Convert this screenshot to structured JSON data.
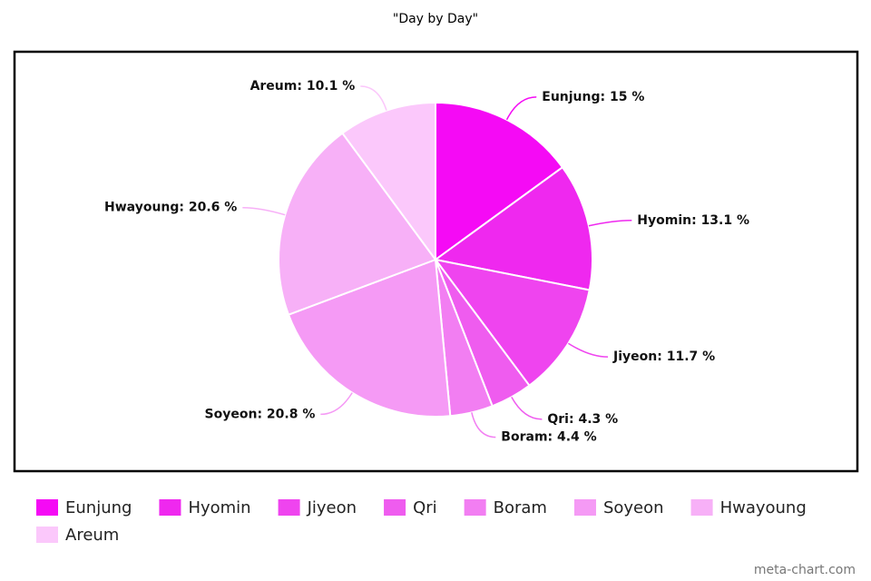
{
  "chart_data": {
    "type": "pie",
    "title": "\"Day by Day\"",
    "categories": [
      "Eunjung",
      "Hyomin",
      "Jiyeon",
      "Qri",
      "Boram",
      "Soyeon",
      "Hwayoung",
      "Areum"
    ],
    "values": [
      15,
      13.1,
      11.7,
      4.3,
      4.4,
      20.8,
      20.6,
      10.1
    ],
    "value_labels": [
      "Eunjung: 15 %",
      "Hyomin: 13.1 %",
      "Jiyeon: 11.7 %",
      "Qri: 4.3 %",
      "Boram: 4.4 %",
      "Soyeon: 20.8 %",
      "Hwayoung: 20.6 %",
      "Areum: 10.1 %"
    ],
    "colors": [
      "#f50af5",
      "#ef28ef",
      "#ef44ef",
      "#ef5cef",
      "#f27ef2",
      "#f59af5",
      "#f7b0f7",
      "#fbc8fb"
    ],
    "credit": "meta-chart.com"
  }
}
